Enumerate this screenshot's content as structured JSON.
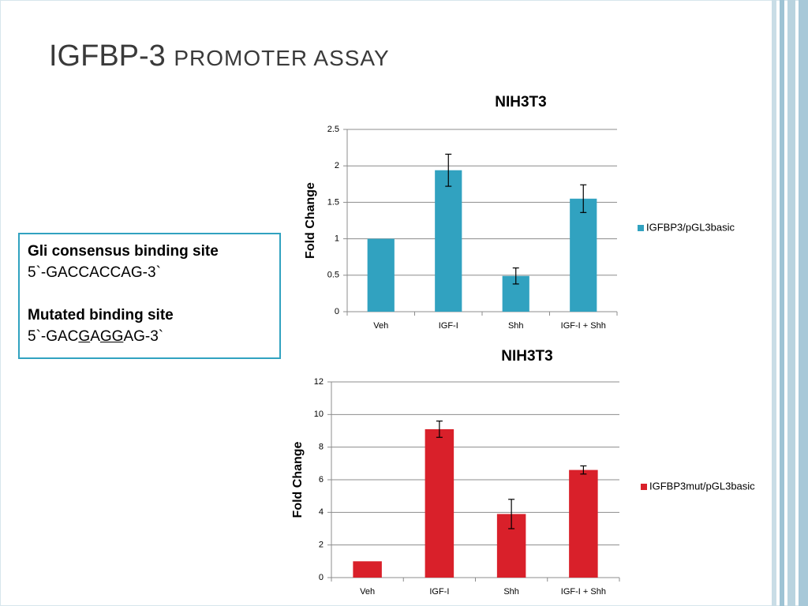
{
  "slide_title": {
    "main": "IGFBP-3",
    "small_caps": "PROMOTER ASSAY"
  },
  "text_box": {
    "heading_1": "Gli consensus binding site",
    "sequence_1": "5`-GACCACCAG-3`",
    "heading_2": "Mutated binding site",
    "sequence_2": [
      {
        "text": "5`-GAC",
        "underline": false
      },
      {
        "text": "G",
        "underline": true
      },
      {
        "text": "A",
        "underline": false
      },
      {
        "text": "GG",
        "underline": true
      },
      {
        "text": "AG-3`",
        "underline": false
      }
    ]
  },
  "chart_data": [
    {
      "type": "bar",
      "title": "NIH3T3",
      "y_label": "Fold Change",
      "categories": [
        "Veh",
        "IGF-I",
        "Shh",
        "IGF-I + Shh"
      ],
      "series": [
        {
          "name": "IGFBP3/pGL3basic",
          "color": "#31a2c0",
          "values": [
            1,
            1.94,
            0.49,
            1.55
          ],
          "errors": [
            null,
            0.22,
            0.11,
            0.19
          ]
        }
      ],
      "ylim": [
        0,
        2.5
      ],
      "yticks": [
        0,
        0.5,
        1,
        1.5,
        2,
        2.5
      ],
      "grid": true,
      "legend": "right"
    },
    {
      "type": "bar",
      "title": "NIH3T3",
      "y_label": "Fold Change",
      "categories": [
        "Veh",
        "IGF-I",
        "Shh",
        "IGF-I + Shh"
      ],
      "series": [
        {
          "name": "IGFBP3mut/pGL3basic",
          "color": "#d9202a",
          "values": [
            1,
            9.1,
            3.9,
            6.6
          ],
          "errors": [
            null,
            0.5,
            0.9,
            0.25
          ]
        }
      ],
      "ylim": [
        0,
        12
      ],
      "yticks": [
        0,
        2,
        4,
        6,
        8,
        10,
        12
      ],
      "grid": true,
      "legend": "right"
    }
  ]
}
